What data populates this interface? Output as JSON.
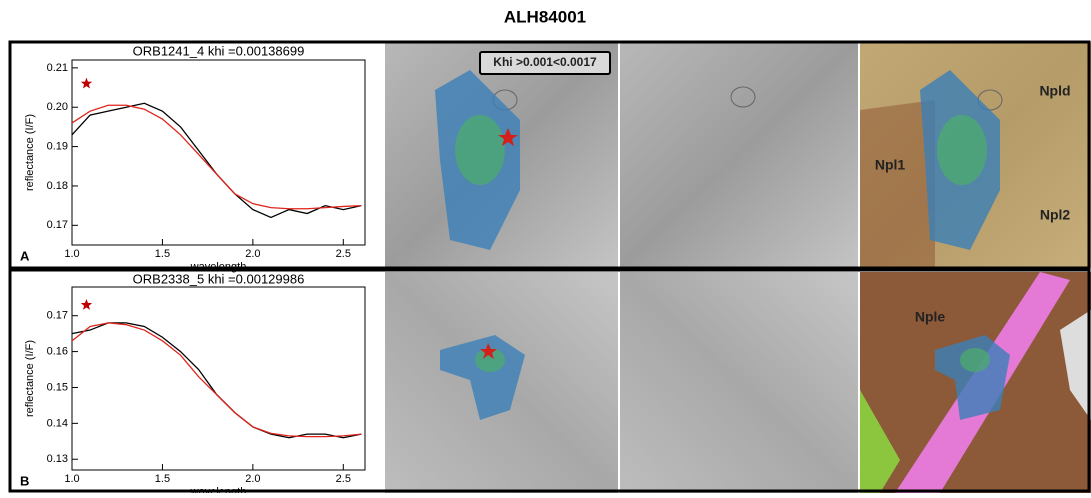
{
  "title": "ALH84001",
  "chart_data": [
    {
      "type": "line",
      "panel": "A",
      "title": "ORB1241_4  khi =0.00138699",
      "xlabel": "wavelength",
      "ylabel": "reflectance (I/F)",
      "x": [
        1.0,
        1.1,
        1.2,
        1.3,
        1.4,
        1.5,
        1.6,
        1.7,
        1.8,
        1.9,
        2.0,
        2.1,
        2.2,
        2.3,
        2.4,
        2.5,
        2.6
      ],
      "series": [
        {
          "color": "#000000",
          "values": [
            0.193,
            0.198,
            0.199,
            0.2,
            0.201,
            0.199,
            0.195,
            0.189,
            0.183,
            0.178,
            0.174,
            0.172,
            0.174,
            0.173,
            0.175,
            0.174,
            0.175
          ]
        },
        {
          "color": "#e0241b",
          "values": [
            0.196,
            0.199,
            0.2005,
            0.2005,
            0.1995,
            0.197,
            0.193,
            0.188,
            0.183,
            0.178,
            0.1755,
            0.1745,
            0.1742,
            0.1742,
            0.1745,
            0.1748,
            0.175
          ]
        }
      ],
      "marker": {
        "x": 1.08,
        "y": 0.206,
        "color": "#c00000"
      },
      "xlim": [
        1.0,
        2.62
      ],
      "xticks": [
        {
          "value": 1.0,
          "label": "1.0"
        },
        1.5,
        {
          "value": 2.0,
          "label": "2.0"
        },
        2.5
      ],
      "ylim": [
        0.165,
        0.212
      ],
      "yticks": [
        0.17,
        0.18,
        0.19,
        {
          "value": 0.2,
          "label": "0.20"
        },
        0.21
      ],
      "grid": false
    },
    {
      "type": "line",
      "panel": "B",
      "title": "ORB2338_5  khi =0.00129986",
      "xlabel": "wavelength",
      "ylabel": "reflectance (I/F)",
      "x": [
        1.0,
        1.1,
        1.2,
        1.3,
        1.4,
        1.5,
        1.6,
        1.7,
        1.8,
        1.9,
        2.0,
        2.1,
        2.2,
        2.3,
        2.4,
        2.5,
        2.6
      ],
      "series": [
        {
          "color": "#000000",
          "values": [
            0.165,
            0.166,
            0.168,
            0.168,
            0.167,
            0.164,
            0.16,
            0.155,
            0.148,
            0.143,
            0.139,
            0.137,
            0.136,
            0.137,
            0.137,
            0.136,
            0.137
          ]
        },
        {
          "color": "#e0241b",
          "values": [
            0.163,
            0.167,
            0.168,
            0.1675,
            0.166,
            0.163,
            0.159,
            0.153,
            0.148,
            0.143,
            0.139,
            0.1372,
            0.1365,
            0.1363,
            0.1363,
            0.1365,
            0.137
          ]
        }
      ],
      "marker": {
        "x": 1.08,
        "y": 0.173,
        "color": "#c00000"
      },
      "xlim": [
        1.0,
        2.62
      ],
      "xticks": [
        {
          "value": 1.0,
          "label": "1.0"
        },
        1.5,
        {
          "value": 2.0,
          "label": "2.0"
        },
        2.5
      ],
      "ylim": [
        0.127,
        0.178
      ],
      "yticks": [
        0.13,
        0.14,
        0.15,
        0.16,
        0.17
      ],
      "grid": false
    }
  ],
  "map_labels": [
    "Khi >0.001<0.0017",
    "Npld",
    "Npl1",
    "Npl2",
    "Nple"
  ]
}
